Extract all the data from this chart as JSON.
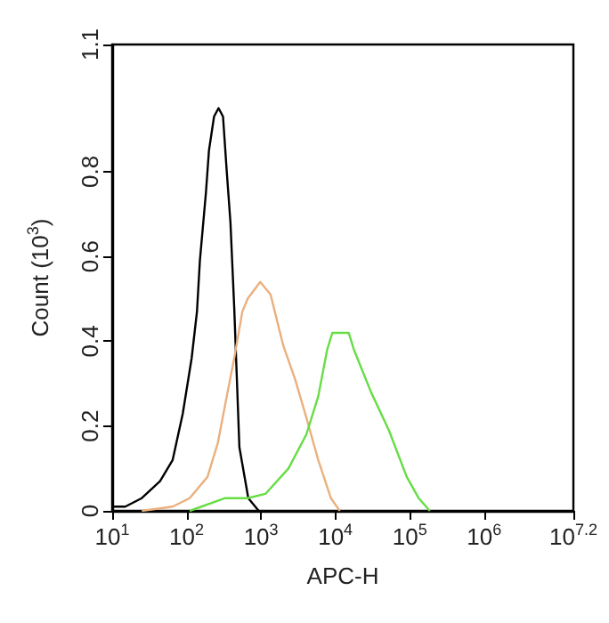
{
  "chart_data": {
    "type": "line",
    "xlabel": "APC-H",
    "ylabel": "Count (10$^{3}$)",
    "log": "x",
    "grid": false,
    "marker": "none",
    "line_style": "solid",
    "xlim": [
      10,
      15848932
    ],
    "xticks": [
      {
        "value": 10,
        "label": "10$^{1}$"
      },
      {
        "value": 100,
        "label": "10$^{2}$"
      },
      {
        "value": 1000,
        "label": "10$^{3}$"
      },
      {
        "value": 10000,
        "label": "10$^{4}$"
      },
      {
        "value": 100000,
        "label": "10$^{5}$"
      },
      {
        "value": 1000000,
        "label": "10$^{6}$"
      },
      {
        "value": 15848932,
        "label": "10$^{7.2}$"
      }
    ],
    "ylim": [
      0,
      1.1
    ],
    "yticks": [
      0,
      0.2,
      0.4,
      0.6,
      0.8,
      1.1
    ],
    "series": [
      {
        "color": "#000000",
        "x": [
          10,
          15,
          25,
          44,
          65,
          89,
          117,
          138,
          151,
          182,
          200,
          234,
          269,
          309,
          347,
          389,
          437,
          513,
          676,
          933
        ],
        "values": [
          0.01,
          0.01,
          0.03,
          0.07,
          0.12,
          0.23,
          0.36,
          0.47,
          0.59,
          0.75,
          0.85,
          0.93,
          0.95,
          0.93,
          0.8,
          0.68,
          0.48,
          0.15,
          0.03,
          0
        ]
      },
      {
        "color": "#eab07e",
        "x": [
          25,
          65,
          110,
          191,
          263,
          347,
          437,
          562,
          661,
          977,
          1349,
          1585,
          1995,
          2884,
          4074,
          5888,
          8710,
          11482
        ],
        "values": [
          0,
          0.01,
          0.03,
          0.08,
          0.16,
          0.27,
          0.36,
          0.47,
          0.5,
          0.54,
          0.51,
          0.46,
          0.39,
          0.31,
          0.22,
          0.12,
          0.03,
          0
        ]
      },
      {
        "color": "#66dd44",
        "x": [
          110,
          331,
          661,
          1148,
          2344,
          4074,
          5888,
          7762,
          9120,
          11482,
          15136,
          17783,
          30200,
          52481,
          91201,
          131826,
          186209
        ],
        "values": [
          0,
          0.03,
          0.03,
          0.04,
          0.1,
          0.18,
          0.27,
          0.38,
          0.42,
          0.42,
          0.42,
          0.38,
          0.28,
          0.19,
          0.08,
          0.03,
          0
        ]
      }
    ]
  }
}
